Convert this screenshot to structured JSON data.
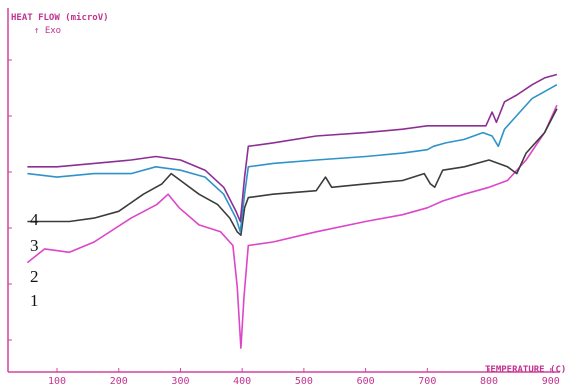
{
  "chart_data": {
    "type": "line",
    "ylabel": "HEAT FLOW (microV)",
    "y_direction": "↑ Exo",
    "xlabel": "TEMPERATURE (C)",
    "x_ticks": [
      "100",
      "200",
      "300",
      "400",
      "500",
      "600",
      "700",
      "800",
      "900"
    ],
    "xlim": [
      40,
      915
    ],
    "ylim": [
      0,
      100
    ],
    "series": [
      {
        "name": "1",
        "color": "#dc46c8",
        "points": [
          [
            52,
            32
          ],
          [
            80,
            36
          ],
          [
            120,
            35
          ],
          [
            160,
            38
          ],
          [
            220,
            45
          ],
          [
            262,
            49
          ],
          [
            280,
            52
          ],
          [
            298,
            48
          ],
          [
            330,
            43
          ],
          [
            365,
            41
          ],
          [
            385,
            37
          ],
          [
            392,
            25
          ],
          [
            398,
            7
          ],
          [
            403,
            22
          ],
          [
            410,
            37
          ],
          [
            450,
            38
          ],
          [
            520,
            41
          ],
          [
            600,
            44
          ],
          [
            660,
            46
          ],
          [
            700,
            48
          ],
          [
            725,
            50
          ],
          [
            760,
            52
          ],
          [
            800,
            54
          ],
          [
            830,
            56
          ],
          [
            860,
            62
          ],
          [
            890,
            70
          ],
          [
            910,
            78
          ]
        ]
      },
      {
        "name": "2",
        "color": "#3c3c3c",
        "points": [
          [
            52,
            44
          ],
          [
            80,
            44
          ],
          [
            120,
            44
          ],
          [
            160,
            45
          ],
          [
            200,
            47
          ],
          [
            240,
            52
          ],
          [
            270,
            55
          ],
          [
            285,
            58
          ],
          [
            300,
            56
          ],
          [
            330,
            52
          ],
          [
            360,
            49
          ],
          [
            380,
            45
          ],
          [
            392,
            41
          ],
          [
            398,
            40
          ],
          [
            404,
            48
          ],
          [
            410,
            51
          ],
          [
            450,
            52
          ],
          [
            520,
            53
          ],
          [
            535,
            57
          ],
          [
            545,
            54
          ],
          [
            600,
            55
          ],
          [
            660,
            56
          ],
          [
            695,
            58
          ],
          [
            705,
            55
          ],
          [
            712,
            54
          ],
          [
            725,
            59
          ],
          [
            760,
            60
          ],
          [
            800,
            62
          ],
          [
            830,
            60
          ],
          [
            845,
            58
          ],
          [
            860,
            64
          ],
          [
            890,
            70
          ],
          [
            910,
            77
          ]
        ]
      },
      {
        "name": "3",
        "color": "#2f93c9",
        "points": [
          [
            52,
            58
          ],
          [
            100,
            57
          ],
          [
            160,
            58
          ],
          [
            220,
            58
          ],
          [
            260,
            60
          ],
          [
            300,
            59
          ],
          [
            340,
            57
          ],
          [
            370,
            52
          ],
          [
            390,
            45
          ],
          [
            397,
            41
          ],
          [
            404,
            52
          ],
          [
            410,
            60
          ],
          [
            450,
            61
          ],
          [
            520,
            62
          ],
          [
            600,
            63
          ],
          [
            660,
            64
          ],
          [
            700,
            65
          ],
          [
            710,
            66
          ],
          [
            730,
            67
          ],
          [
            760,
            68
          ],
          [
            790,
            70
          ],
          [
            805,
            69
          ],
          [
            815,
            66
          ],
          [
            825,
            71
          ],
          [
            845,
            75
          ],
          [
            870,
            80
          ],
          [
            890,
            82
          ],
          [
            910,
            84
          ]
        ]
      },
      {
        "name": "4",
        "color": "#8c2f95",
        "points": [
          [
            52,
            60
          ],
          [
            100,
            60
          ],
          [
            160,
            61
          ],
          [
            220,
            62
          ],
          [
            260,
            63
          ],
          [
            300,
            62
          ],
          [
            340,
            59
          ],
          [
            370,
            54
          ],
          [
            390,
            47
          ],
          [
            397,
            44
          ],
          [
            404,
            57
          ],
          [
            410,
            66
          ],
          [
            450,
            67
          ],
          [
            520,
            69
          ],
          [
            600,
            70
          ],
          [
            660,
            71
          ],
          [
            700,
            72
          ],
          [
            740,
            72
          ],
          [
            770,
            72
          ],
          [
            795,
            72
          ],
          [
            805,
            76
          ],
          [
            812,
            73
          ],
          [
            825,
            79
          ],
          [
            845,
            81
          ],
          [
            870,
            84
          ],
          [
            890,
            86
          ],
          [
            910,
            87
          ]
        ]
      }
    ],
    "curve_labels": [
      "4",
      "3",
      "2",
      "1"
    ],
    "grid": false
  }
}
